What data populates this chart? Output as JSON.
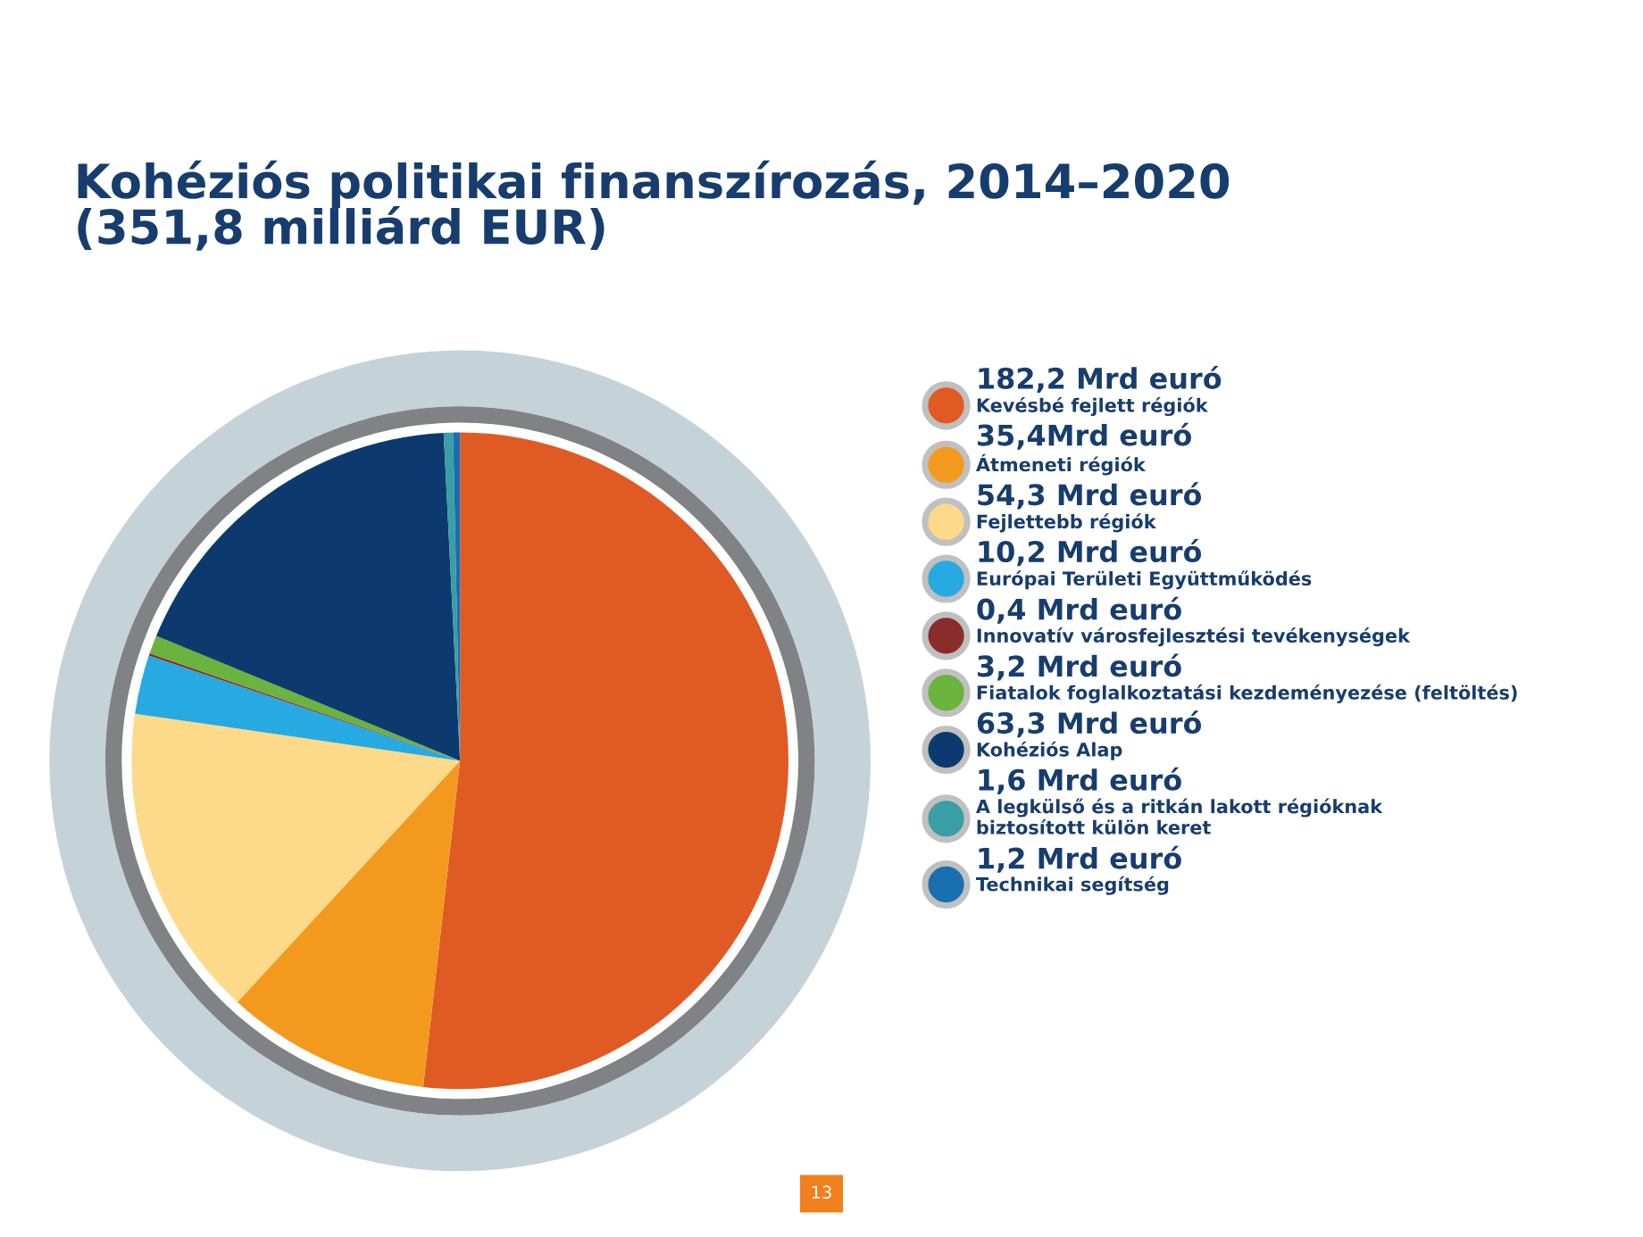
{
  "chart_data": {
    "type": "pie",
    "title": "Kohéziós politikai finanszírozás, 2014–2020\n(351,8 milliárd EUR)",
    "categories": [
      "Kevésbé fejlett régiók",
      "Átmeneti régiók",
      "Fejlettebb régiók",
      "Európai Területi Együttműködés",
      "Innovatív városfejlesztési tevékenységek",
      "Fiatalok foglalkoztatási kezdeményezése (feltöltés)",
      "Kohéziós Alap",
      "A legkülső és a ritkán lakott régióknak\nbiztosított külön keret",
      "Technikai segítség"
    ],
    "values": [
      182.2,
      35.4,
      54.3,
      10.2,
      0.4,
      3.2,
      63.3,
      1.6,
      1.2
    ],
    "value_labels": [
      "182,2 Mrd euró",
      "35,4Mrd euró",
      "54,3 Mrd euró",
      "10,2 Mrd euró",
      "0,4 Mrd euró",
      "3,2 Mrd euró",
      "63,3 Mrd euró",
      "1,6 Mrd euró",
      "1,2 Mrd euró"
    ],
    "colors": [
      "#e05a24",
      "#f39a1e",
      "#fdd98a",
      "#27aae1",
      "#8b2c2c",
      "#6ab33e",
      "#0d3a6e",
      "#3a9ea5",
      "#1a6fb0"
    ],
    "legend": "right",
    "annotations": [
      "13"
    ]
  }
}
